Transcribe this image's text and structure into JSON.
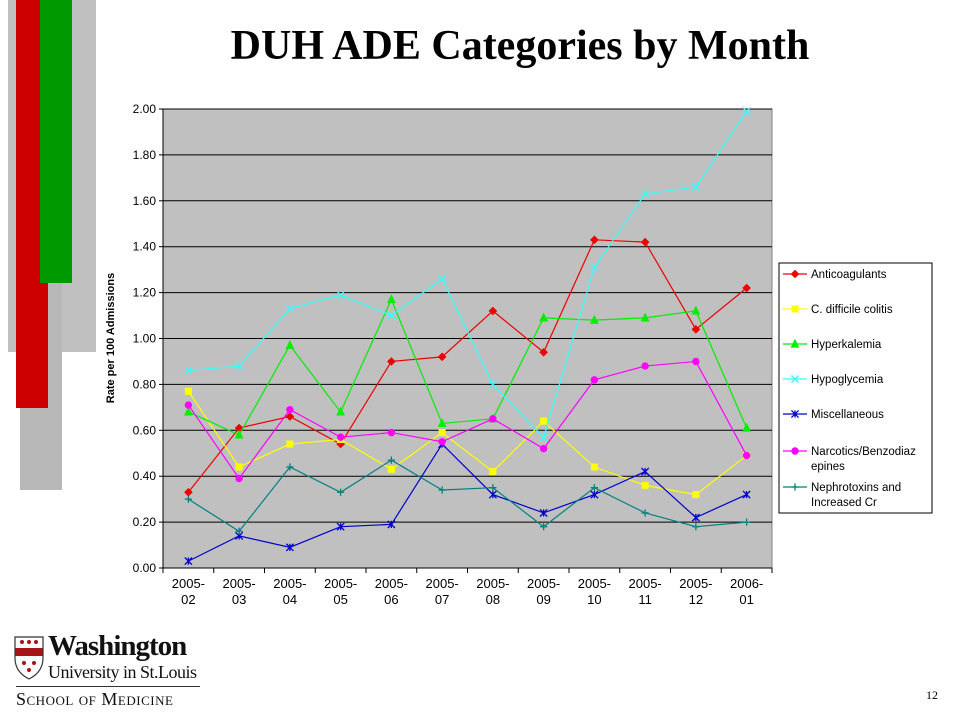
{
  "slide": {
    "title": "DUH ADE Categories by Month",
    "page_number": "12"
  },
  "logo": {
    "line1": "Washington",
    "line2": "University in St.Louis",
    "line3": "School of Medicine"
  },
  "colors": {
    "decor_gray": "#c0c0c0",
    "decor_red": "#cc0000",
    "decor_green": "#009900",
    "plot_bg": "#c0c0c0",
    "shield_red": "#a51417"
  },
  "chart_data": {
    "type": "line",
    "title": "",
    "xlabel": "",
    "ylabel": "Rate per 100 Admissions",
    "ylim": [
      0,
      2
    ],
    "yticks": [
      "0.00",
      "0.20",
      "0.40",
      "0.60",
      "0.80",
      "1.00",
      "1.20",
      "1.40",
      "1.60",
      "1.80",
      "2.00"
    ],
    "grid": true,
    "legend_position": "right",
    "categories": [
      "2005-02",
      "2005-03",
      "2005-04",
      "2005-05",
      "2005-06",
      "2005-07",
      "2005-08",
      "2005-09",
      "2005-10",
      "2005-11",
      "2005-12",
      "2006-01"
    ],
    "tick_labels": [
      [
        "2005-",
        "02"
      ],
      [
        "2005-",
        "03"
      ],
      [
        "2005-",
        "04"
      ],
      [
        "2005-",
        "05"
      ],
      [
        "2005-",
        "06"
      ],
      [
        "2005-",
        "07"
      ],
      [
        "2005-",
        "08"
      ],
      [
        "2005-",
        "09"
      ],
      [
        "2005-",
        "10"
      ],
      [
        "2005-",
        "11"
      ],
      [
        "2005-",
        "12"
      ],
      [
        "2006-",
        "01"
      ]
    ],
    "series": [
      {
        "name": "Anticoagulants",
        "legend_lines": [
          "Anticoagulants"
        ],
        "color": "#ee0000",
        "marker": "diamond",
        "values": [
          0.33,
          0.61,
          0.66,
          0.54,
          0.9,
          0.92,
          1.12,
          0.94,
          1.43,
          1.42,
          1.04,
          1.22
        ]
      },
      {
        "name": "C. difficile colitis",
        "legend_lines": [
          "C. difficile colitis"
        ],
        "color": "#ffff00",
        "marker": "square",
        "values": [
          0.77,
          0.44,
          0.54,
          0.56,
          0.43,
          0.59,
          0.42,
          0.64,
          0.44,
          0.36,
          0.32,
          0.49
        ]
      },
      {
        "name": "Hyperkalemia",
        "legend_lines": [
          "Hyperkalemia"
        ],
        "color": "#00ee00",
        "marker": "triangle",
        "values": [
          0.68,
          0.58,
          0.97,
          0.68,
          1.17,
          0.63,
          0.65,
          1.09,
          1.08,
          1.09,
          1.12,
          0.61
        ]
      },
      {
        "name": "Hypoglycemia",
        "legend_lines": [
          "Hypoglycemia"
        ],
        "color": "#33ffff",
        "marker": "x",
        "values": [
          0.86,
          0.88,
          1.13,
          1.19,
          1.1,
          1.26,
          0.8,
          0.57,
          1.31,
          1.63,
          1.66,
          1.99
        ]
      },
      {
        "name": "Miscellaneous",
        "legend_lines": [
          "Miscellaneous"
        ],
        "color": "#0000cc",
        "marker": "star",
        "values": [
          0.03,
          0.14,
          0.09,
          0.18,
          0.19,
          0.54,
          0.32,
          0.24,
          0.32,
          0.42,
          0.22,
          0.32
        ]
      },
      {
        "name": "Narcotics/Benzodiazepines",
        "legend_lines": [
          "Narcotics/Benzodiaz",
          "epines"
        ],
        "color": "#ff00ff",
        "marker": "circle",
        "values": [
          0.71,
          0.39,
          0.69,
          0.57,
          0.59,
          0.55,
          0.65,
          0.52,
          0.82,
          0.88,
          0.9,
          0.49
        ]
      },
      {
        "name": "Nephrotoxins and Increased Cr",
        "legend_lines": [
          "Nephrotoxins and",
          "Increased Cr"
        ],
        "color": "#008080",
        "marker": "plus",
        "values": [
          0.3,
          0.16,
          0.44,
          0.33,
          0.47,
          0.34,
          0.35,
          0.18,
          0.35,
          0.24,
          0.18,
          0.2
        ]
      }
    ]
  }
}
